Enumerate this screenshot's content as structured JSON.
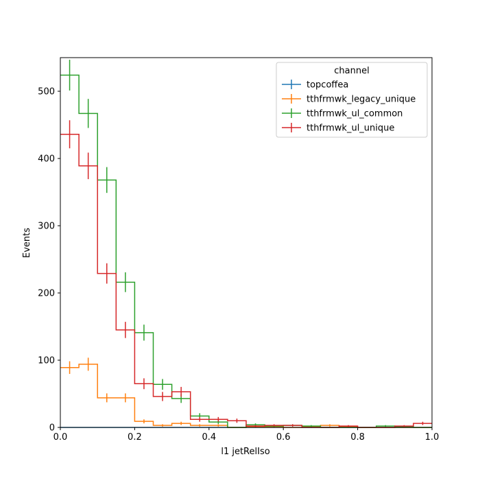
{
  "chart_data": {
    "type": "step-histogram",
    "xlabel": "l1 jetRelIso",
    "ylabel": "Events",
    "xlim": [
      0,
      1
    ],
    "ylim": [
      0,
      550
    ],
    "x_ticks": [
      0,
      0.2,
      0.4,
      0.6,
      0.8,
      1.0
    ],
    "x_tick_labels": [
      "0.0",
      "0.2",
      "0.4",
      "0.6",
      "0.8",
      "1.0"
    ],
    "y_ticks": [
      0,
      100,
      200,
      300,
      400,
      500
    ],
    "y_tick_labels": [
      "0",
      "100",
      "200",
      "300",
      "400",
      "500"
    ],
    "bin_edges": [
      0,
      0.05,
      0.1,
      0.15,
      0.2,
      0.25,
      0.3,
      0.35,
      0.4,
      0.45,
      0.5,
      0.55,
      0.6,
      0.65,
      0.7,
      0.75,
      0.8,
      0.85,
      0.9,
      0.95,
      1.0
    ],
    "legend": {
      "title": "channel",
      "placement": "top-right"
    },
    "series": [
      {
        "name": "topcoffea",
        "color": "#1f77b4",
        "values": [
          0,
          0,
          0,
          0,
          0,
          0,
          0,
          0,
          0,
          0,
          0,
          0,
          0,
          0,
          0,
          0,
          0,
          0,
          0,
          0
        ]
      },
      {
        "name": "tthfrmwk_legacy_unique",
        "color": "#ff7f0e",
        "values": [
          89,
          94,
          44,
          44,
          9,
          3,
          6,
          3,
          3,
          0,
          1,
          1,
          0,
          1,
          3,
          1,
          0,
          0,
          0,
          0
        ]
      },
      {
        "name": "tthfrmwk_ul_common",
        "color": "#2ca02c",
        "values": [
          524,
          467,
          368,
          216,
          141,
          64,
          43,
          17,
          8,
          0,
          4,
          2,
          3,
          2,
          0,
          0,
          0,
          2,
          1,
          0
        ]
      },
      {
        "name": "tthfrmwk_ul_unique",
        "color": "#d62728",
        "values": [
          436,
          389,
          229,
          145,
          65,
          46,
          53,
          12,
          12,
          10,
          2,
          3,
          3,
          0,
          0,
          2,
          0,
          0,
          2,
          6
        ]
      }
    ]
  }
}
